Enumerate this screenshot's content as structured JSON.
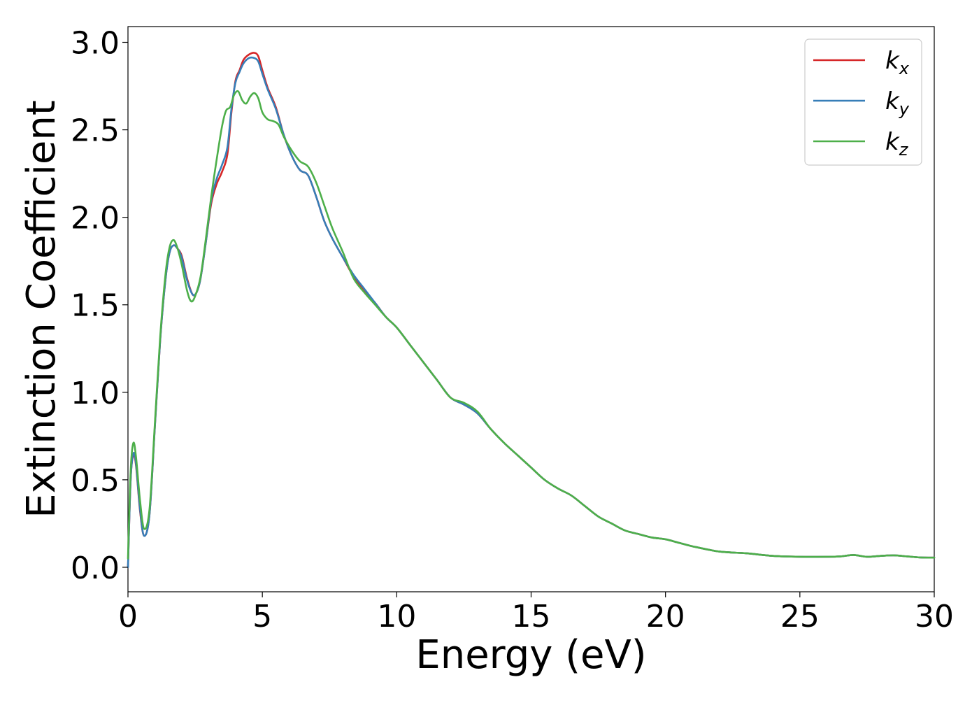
{
  "chart_data": {
    "type": "line",
    "xlabel": "Energy (eV)",
    "ylabel": "Extinction Coefficient",
    "xlim": [
      0,
      30
    ],
    "ylim": [
      -0.14,
      3.09
    ],
    "xticks": [
      "0",
      "5",
      "10",
      "15",
      "20",
      "25",
      "30"
    ],
    "yticks": [
      "0.0",
      "0.5",
      "1.0",
      "1.5",
      "2.0",
      "2.5",
      "3.0"
    ],
    "grid": false,
    "legend_position": "top-right",
    "series": [
      {
        "name": "k",
        "subscript": "x",
        "color": "#d62728",
        "x": [
          0,
          0.1,
          0.2,
          0.3,
          0.45,
          0.6,
          0.8,
          1.0,
          1.2,
          1.4,
          1.55,
          1.7,
          1.85,
          2.0,
          2.2,
          2.4,
          2.55,
          2.7,
          2.9,
          3.1,
          3.3,
          3.5,
          3.7,
          3.85,
          4.0,
          4.15,
          4.3,
          4.5,
          4.7,
          4.85,
          5.0,
          5.2,
          5.5,
          5.8,
          6.1,
          6.4,
          6.7,
          7.0,
          7.3,
          7.6,
          8.0,
          8.4,
          8.8,
          9.2,
          9.6,
          10.0,
          10.5,
          11.0,
          11.5,
          12.0,
          12.5,
          13.0,
          13.5,
          14.0,
          14.5,
          15.0,
          15.5,
          16.0,
          16.5,
          17.0,
          17.5,
          18.0,
          18.5,
          19.0,
          19.5,
          20.0,
          20.5,
          21.0,
          22.0,
          23.0,
          24.0,
          25.0,
          26.0,
          26.5,
          27.0,
          27.5,
          28.0,
          28.5,
          29.0,
          29.5,
          30.0
        ],
        "values": [
          0.0,
          0.5,
          0.64,
          0.58,
          0.32,
          0.18,
          0.3,
          0.8,
          1.3,
          1.65,
          1.8,
          1.84,
          1.82,
          1.78,
          1.65,
          1.56,
          1.57,
          1.65,
          1.86,
          2.08,
          2.19,
          2.26,
          2.36,
          2.6,
          2.78,
          2.84,
          2.9,
          2.93,
          2.94,
          2.92,
          2.84,
          2.74,
          2.63,
          2.47,
          2.35,
          2.27,
          2.24,
          2.12,
          1.98,
          1.88,
          1.77,
          1.66,
          1.58,
          1.51,
          1.43,
          1.37,
          1.27,
          1.17,
          1.07,
          0.97,
          0.93,
          0.88,
          0.79,
          0.71,
          0.64,
          0.57,
          0.5,
          0.45,
          0.41,
          0.35,
          0.29,
          0.25,
          0.21,
          0.19,
          0.17,
          0.16,
          0.14,
          0.12,
          0.09,
          0.08,
          0.065,
          0.06,
          0.06,
          0.062,
          0.07,
          0.06,
          0.065,
          0.068,
          0.062,
          0.056,
          0.055
        ]
      },
      {
        "name": "k",
        "subscript": "y",
        "color": "#377eb8",
        "x": [
          0,
          0.1,
          0.2,
          0.3,
          0.45,
          0.6,
          0.8,
          1.0,
          1.2,
          1.4,
          1.55,
          1.7,
          1.85,
          2.0,
          2.2,
          2.4,
          2.55,
          2.7,
          2.9,
          3.1,
          3.3,
          3.5,
          3.7,
          3.85,
          4.0,
          4.15,
          4.3,
          4.5,
          4.7,
          4.85,
          5.0,
          5.2,
          5.5,
          5.8,
          6.1,
          6.4,
          6.7,
          7.0,
          7.3,
          7.6,
          8.0,
          8.4,
          8.8,
          9.2,
          9.6,
          10.0,
          10.5,
          11.0,
          11.5,
          12.0,
          12.5,
          13.0,
          13.5,
          14.0,
          14.5,
          15.0,
          15.5,
          16.0,
          16.5,
          17.0,
          17.5,
          18.0,
          18.5,
          19.0,
          19.5,
          20.0,
          20.5,
          21.0,
          22.0,
          23.0,
          24.0,
          25.0,
          26.0,
          26.5,
          27.0,
          27.5,
          28.0,
          28.5,
          29.0,
          29.5,
          30.0
        ],
        "values": [
          0.0,
          0.5,
          0.65,
          0.59,
          0.33,
          0.18,
          0.3,
          0.8,
          1.3,
          1.65,
          1.8,
          1.84,
          1.82,
          1.77,
          1.64,
          1.56,
          1.57,
          1.65,
          1.86,
          2.1,
          2.22,
          2.3,
          2.4,
          2.62,
          2.77,
          2.83,
          2.88,
          2.91,
          2.91,
          2.89,
          2.82,
          2.73,
          2.62,
          2.47,
          2.35,
          2.27,
          2.24,
          2.12,
          1.98,
          1.88,
          1.77,
          1.67,
          1.59,
          1.51,
          1.43,
          1.37,
          1.27,
          1.17,
          1.07,
          0.97,
          0.93,
          0.88,
          0.79,
          0.71,
          0.64,
          0.57,
          0.5,
          0.45,
          0.41,
          0.35,
          0.29,
          0.25,
          0.21,
          0.19,
          0.17,
          0.16,
          0.14,
          0.12,
          0.09,
          0.08,
          0.065,
          0.06,
          0.06,
          0.062,
          0.07,
          0.06,
          0.065,
          0.068,
          0.062,
          0.056,
          0.055
        ]
      },
      {
        "name": "k",
        "subscript": "z",
        "color": "#4daf4a",
        "x": [
          0,
          0.1,
          0.2,
          0.3,
          0.45,
          0.6,
          0.8,
          1.0,
          1.2,
          1.4,
          1.55,
          1.7,
          1.85,
          2.0,
          2.2,
          2.35,
          2.5,
          2.7,
          2.9,
          3.1,
          3.3,
          3.5,
          3.65,
          3.8,
          3.95,
          4.1,
          4.25,
          4.4,
          4.55,
          4.7,
          4.85,
          5.0,
          5.2,
          5.4,
          5.6,
          5.8,
          6.1,
          6.4,
          6.7,
          7.0,
          7.3,
          7.6,
          8.0,
          8.4,
          8.8,
          9.2,
          9.6,
          10.0,
          10.5,
          11.0,
          11.5,
          12.0,
          12.5,
          13.0,
          13.5,
          14.0,
          14.5,
          15.0,
          15.5,
          16.0,
          16.5,
          17.0,
          17.5,
          18.0,
          18.5,
          19.0,
          19.5,
          20.0,
          20.5,
          21.0,
          22.0,
          23.0,
          24.0,
          25.0,
          26.0,
          26.5,
          27.0,
          27.5,
          28.0,
          28.5,
          29.0,
          29.5,
          30.0
        ],
        "values": [
          0.05,
          0.55,
          0.71,
          0.63,
          0.38,
          0.22,
          0.33,
          0.82,
          1.32,
          1.68,
          1.83,
          1.87,
          1.82,
          1.73,
          1.58,
          1.52,
          1.55,
          1.66,
          1.88,
          2.12,
          2.33,
          2.52,
          2.61,
          2.63,
          2.7,
          2.72,
          2.67,
          2.65,
          2.69,
          2.71,
          2.68,
          2.6,
          2.56,
          2.55,
          2.53,
          2.46,
          2.38,
          2.32,
          2.29,
          2.2,
          2.07,
          1.94,
          1.8,
          1.65,
          1.57,
          1.5,
          1.43,
          1.37,
          1.27,
          1.17,
          1.07,
          0.97,
          0.94,
          0.89,
          0.79,
          0.71,
          0.64,
          0.57,
          0.5,
          0.45,
          0.41,
          0.35,
          0.29,
          0.25,
          0.21,
          0.19,
          0.17,
          0.16,
          0.14,
          0.12,
          0.09,
          0.08,
          0.065,
          0.06,
          0.06,
          0.062,
          0.07,
          0.06,
          0.065,
          0.068,
          0.062,
          0.056,
          0.055
        ]
      }
    ]
  }
}
